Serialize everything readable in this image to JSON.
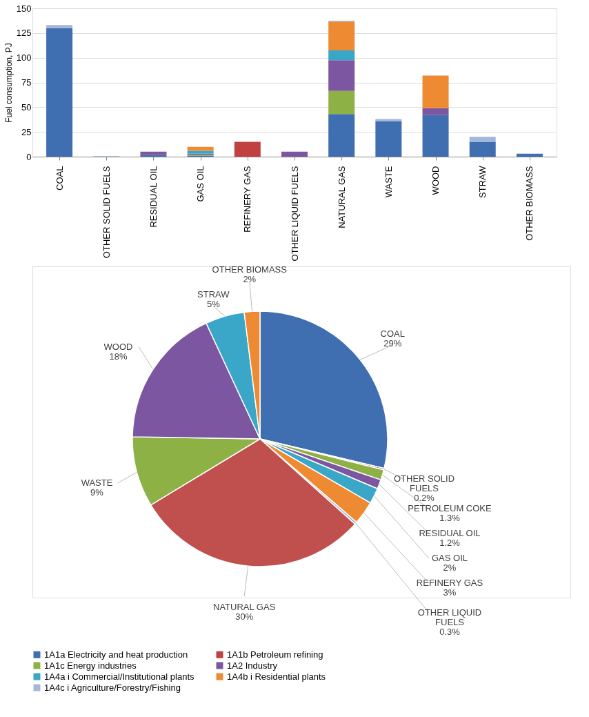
{
  "chart_data": [
    {
      "type": "bar",
      "stacked": true,
      "ylabel": "Fuel consumption, PJ",
      "categories": [
        "COAL",
        "OTHER SOLID FUELS",
        "RESIDUAL OIL",
        "GAS OIL",
        "REFINERY GAS",
        "OTHER LIQUID FUELS",
        "NATURAL GAS",
        "WASTE",
        "WOOD",
        "STRAW",
        "OTHER BIOMASS"
      ],
      "series": [
        {
          "name": "1A1a Electricity and heat production",
          "color": "#3f6fb0",
          "values": [
            130,
            null,
            1.5,
            1,
            null,
            null,
            43,
            36,
            42,
            15,
            3
          ]
        },
        {
          "name": "1A1b Petroleum refining",
          "color": "#c0413f",
          "values": [
            null,
            null,
            null,
            null,
            15,
            null,
            null,
            null,
            null,
            null,
            null
          ]
        },
        {
          "name": "1A1c Energy industries",
          "color": "#8db145",
          "values": [
            null,
            null,
            null,
            1,
            null,
            null,
            23.5,
            null,
            null,
            null,
            null
          ]
        },
        {
          "name": "1A2 Industry",
          "color": "#7c56a0",
          "values": [
            null,
            null,
            3.5,
            1,
            null,
            5,
            31,
            null,
            7,
            null,
            null
          ]
        },
        {
          "name": "1A4a i Commercial/Institutional plants",
          "color": "#3aa6c8",
          "values": [
            null,
            null,
            null,
            3,
            null,
            null,
            10,
            null,
            null,
            null,
            null
          ]
        },
        {
          "name": "1A4b i  Residential plants",
          "color": "#ee8a32",
          "values": [
            null,
            null,
            null,
            4,
            null,
            null,
            29,
            null,
            33,
            null,
            null
          ]
        },
        {
          "name": "1A4c i  Agriculture/Forestry/Fishing",
          "color": "#a3b6dc",
          "values": [
            3,
            0.5,
            null,
            null,
            null,
            null,
            1,
            2,
            null,
            5,
            null
          ]
        }
      ],
      "ylim": [
        0,
        150
      ],
      "yticks": [
        0,
        25,
        50,
        75,
        100,
        125,
        150
      ],
      "grid": "y",
      "legend": "bottom"
    },
    {
      "type": "pie",
      "categories": [
        "COAL",
        "OTHER SOLID FUELS",
        "PETROLEUM COKE",
        "RESIDUAL OIL",
        "GAS OIL",
        "REFINERY GAS",
        "OTHER LIQUID FUELS",
        "NATURAL GAS",
        "WASTE",
        "WOOD",
        "STRAW",
        "OTHER BIOMASS"
      ],
      "values": [
        29,
        0.2,
        1.3,
        1.2,
        2,
        3,
        0.3,
        30,
        9,
        18,
        5,
        2
      ],
      "value_labels": [
        "29%",
        "0.2%",
        "1.3%",
        "1.2%",
        "2%",
        "3%",
        "0.3%",
        "30%",
        "9%",
        "18%",
        "5%",
        "2%"
      ],
      "colors": [
        "#3f6fb0",
        "#c0413f",
        "#8db145",
        "#7c56a0",
        "#3aa6c8",
        "#ee8a32",
        "#a3b6dc",
        "#c0504d",
        "#8db145",
        "#7c56a0",
        "#3aa6c8",
        "#ee8a32"
      ],
      "legend": false
    }
  ]
}
